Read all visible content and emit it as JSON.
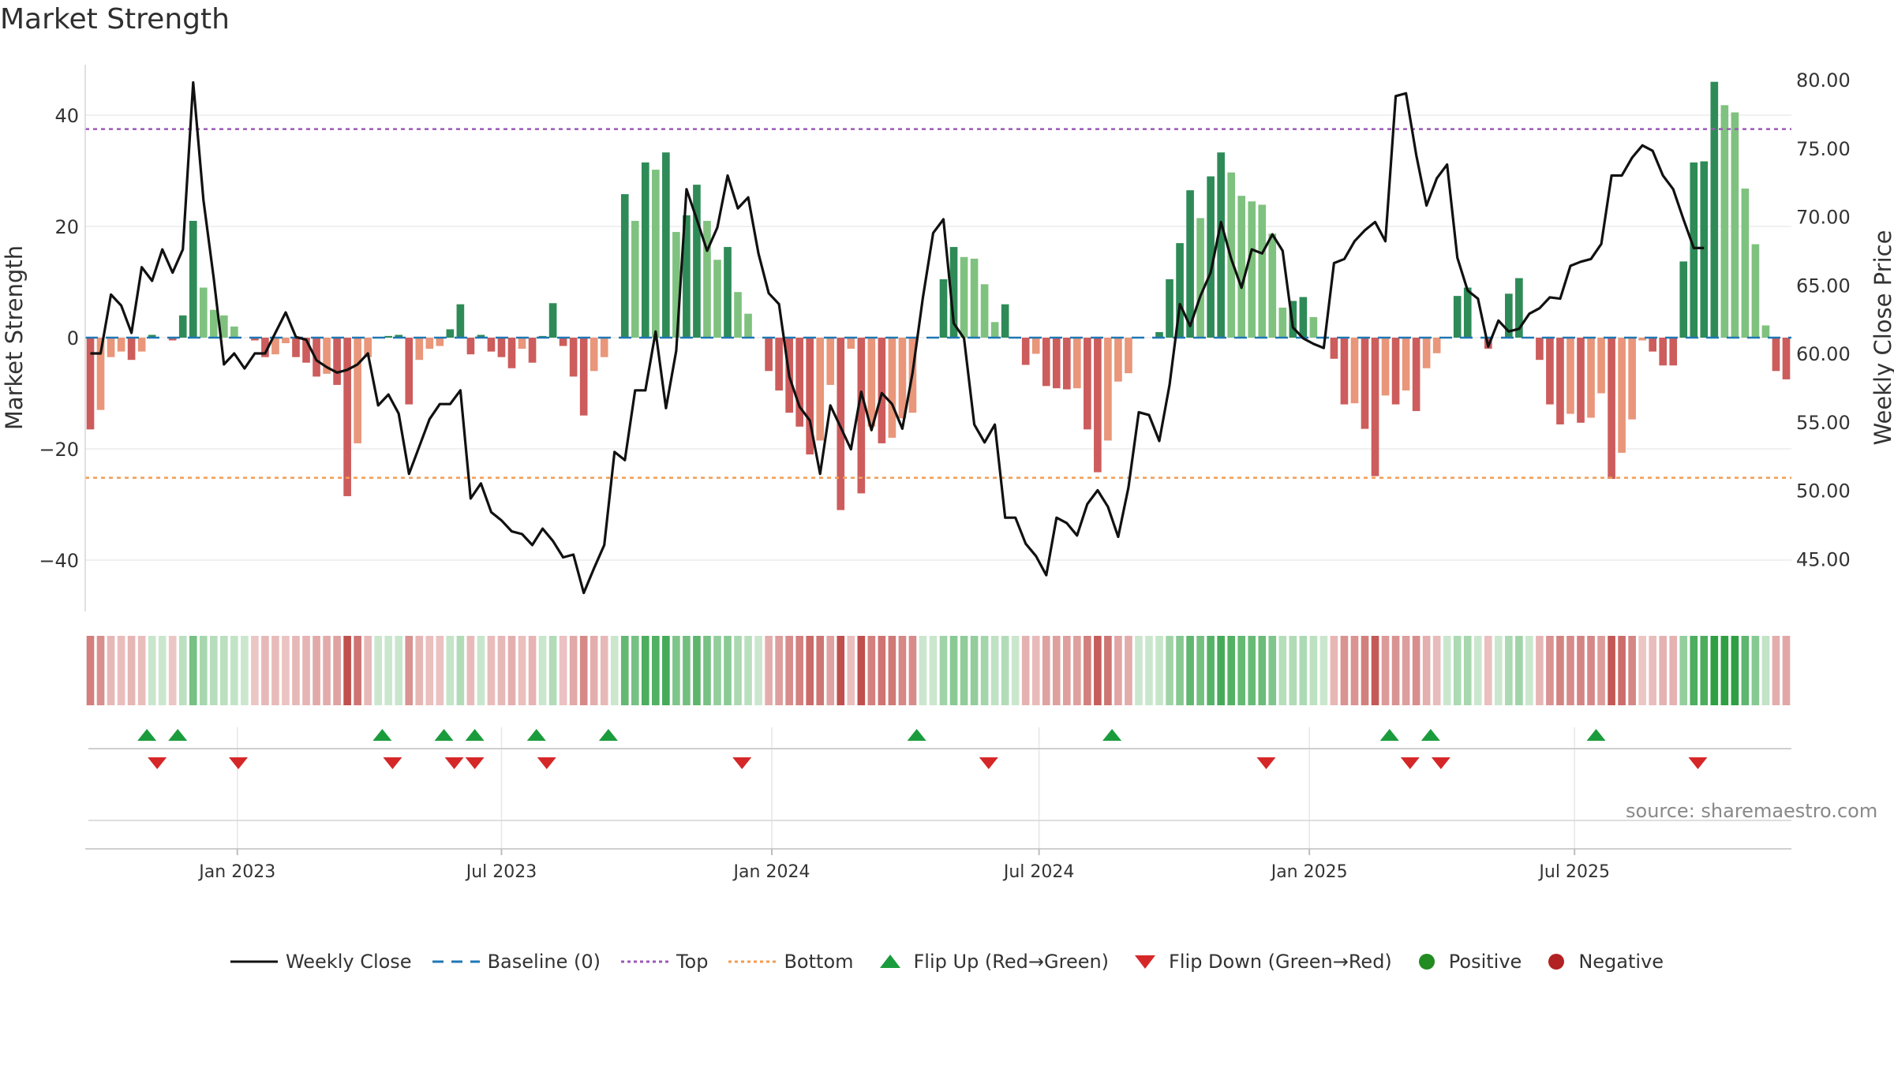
{
  "title": "Market Strength",
  "source": "source: sharemaestro.com",
  "colors": {
    "pos_dark": "#2e8b57",
    "pos_light": "#7fc27f",
    "neg_dark": "#cd5c5c",
    "neg_light": "#e9967a",
    "close": "#111111",
    "baseline": "#1f77b4",
    "top": "#9b59b6",
    "bottom": "#f39c50",
    "flip_up": "#1a9c3c",
    "flip_down": "#d62728",
    "positive": "#228b22",
    "negative": "#b22222"
  },
  "legend": {
    "close": "Weekly Close",
    "baseline": "Baseline (0)",
    "top": "Top",
    "bottom": "Bottom",
    "flip_up": "Flip Up (Red→Green)",
    "flip_down": "Flip Down (Green→Red)",
    "positive": "Positive",
    "negative": "Negative"
  },
  "chart_data": {
    "type": "bar",
    "title": "Market Strength",
    "ylabel_left": "Market Strength",
    "ylabel_right": "Weekly Close Price",
    "ylim_left": [
      -49,
      50
    ],
    "ylim_right": [
      42.0,
      82.0
    ],
    "yticks_left": [
      40,
      20,
      0,
      -20,
      -40
    ],
    "ytick_labels_left": [
      "40",
      "20",
      "0",
      "−20",
      "−40"
    ],
    "yticks_right": [
      80,
      75,
      70,
      65,
      60,
      55,
      50,
      45
    ],
    "ytick_labels_right": [
      "80.00",
      "75.00",
      "70.00",
      "65.00",
      "60.00",
      "55.00",
      "50.00",
      "45.00"
    ],
    "top_level": 37.5,
    "bottom_level": -25.2,
    "x_ticks": [
      {
        "label": "Jan 2023",
        "week": 14.3
      },
      {
        "label": "Jul 2023",
        "week": 40.0
      },
      {
        "label": "Jan 2024",
        "week": 66.3
      },
      {
        "label": "Jul 2024",
        "week": 92.3
      },
      {
        "label": "Jan 2025",
        "week": 118.6
      },
      {
        "label": "Jul 2025",
        "week": 144.4
      }
    ],
    "strength": [
      -16.5,
      -13,
      -3.5,
      -2.5,
      -4,
      -2.5,
      0.5,
      0,
      -0.5,
      4,
      21,
      9,
      5,
      4,
      2,
      0,
      -0.5,
      -3.5,
      -3,
      -1,
      -3.5,
      -4.5,
      -7,
      -6.5,
      -8.5,
      -28.5,
      -19,
      -3.5,
      0,
      0.3,
      0.5,
      -12,
      -4,
      -2,
      -1.5,
      1.5,
      6,
      -3,
      0.5,
      -2.5,
      -3.5,
      -5.5,
      -2,
      -4.5,
      0.3,
      6.2,
      -1.5,
      -7,
      -14,
      -6,
      -3.5,
      0,
      25.8,
      21,
      31.5,
      30.2,
      33.3,
      19,
      22,
      27.5,
      21,
      14,
      16.3,
      8.2,
      4.3,
      0,
      -6,
      -9.5,
      -13.5,
      -16,
      -21,
      -18.5,
      -8.5,
      -31,
      -2,
      -28,
      -16,
      -19,
      -18,
      -14.5,
      -13.5,
      0,
      0,
      10.5,
      16.3,
      14.5,
      14.2,
      9.6,
      2.8,
      6,
      0,
      -4.9,
      -2.9,
      -8.7,
      -9.1,
      -9.3,
      -9.1,
      -16.5,
      -24.2,
      -18.5,
      -7.9,
      -6.4,
      0,
      0,
      1,
      10.5,
      17,
      26.5,
      21.5,
      29,
      33.3,
      29.7,
      25.5,
      24.5,
      23.9,
      18.7,
      5.4,
      6.6,
      7.3,
      3.7,
      0,
      -3.8,
      -12,
      -11.8,
      -16.4,
      -24.9,
      -10.4,
      -12,
      -9.5,
      -13.2,
      -5.5,
      -2.8,
      0,
      7.5,
      9,
      0,
      -2,
      0,
      7.9,
      10.7,
      0,
      -4,
      -12,
      -15.6,
      -13.7,
      -15.3,
      -14.4,
      -10,
      -25.4,
      -20.7,
      -14.7,
      -0.5,
      -2.5,
      -5,
      -5,
      13.7,
      31.5,
      31.7,
      46,
      41.8,
      40.5,
      26.8,
      16.8,
      2.2,
      -6,
      -7.5
    ],
    "close": [
      60.0,
      60.0,
      64.3,
      63.5,
      61.5,
      66.3,
      65.3,
      67.6,
      65.9,
      67.6,
      79.8,
      71.2,
      65.5,
      59.2,
      60.0,
      58.9,
      60.0,
      60.0,
      61.5,
      63.0,
      61.2,
      61.0,
      59.5,
      59.0,
      58.6,
      58.8,
      59.2,
      60.0,
      56.2,
      57.0,
      55.6,
      51.2,
      53.2,
      55.2,
      56.3,
      56.3,
      57.3,
      49.4,
      50.5,
      48.4,
      47.8,
      47.0,
      46.8,
      46.0,
      47.2,
      46.3,
      45.1,
      45.3,
      42.5,
      44.3,
      46.0,
      52.8,
      52.2,
      57.3,
      57.3,
      61.6,
      56.0,
      60.2,
      72.0,
      69.8,
      67.5,
      69.2,
      73.0,
      70.6,
      71.4,
      67.3,
      64.4,
      63.6,
      58.3,
      56.1,
      55.1,
      51.2,
      56.2,
      54.6,
      53.0,
      57.2,
      54.4,
      57.1,
      56.3,
      54.5,
      58.6,
      64.1,
      68.8,
      69.8,
      62.2,
      61.1,
      54.8,
      53.5,
      54.8,
      48.0,
      48.0,
      46.1,
      45.2,
      43.8,
      48.0,
      47.6,
      46.7,
      49.0,
      50.0,
      48.8,
      46.6,
      50.2,
      55.7,
      55.5,
      53.6,
      57.7,
      63.6,
      62.0,
      64.2,
      65.9,
      69.6,
      66.9,
      64.8,
      67.6,
      67.3,
      68.7,
      67.5,
      61.9,
      61.1,
      60.7,
      60.4,
      66.6,
      66.9,
      68.2,
      69.0,
      69.6,
      68.2,
      78.8,
      79.0,
      74.5,
      70.8,
      72.8,
      73.8,
      67.0,
      64.6,
      64.0,
      60.5,
      62.4,
      61.6,
      61.8,
      62.9,
      63.3,
      64.1,
      64.0,
      66.4,
      66.7,
      66.9,
      68.0,
      73.0,
      73.0,
      74.3,
      75.2,
      74.8,
      73.0,
      72.0,
      69.8,
      67.7,
      67.7
    ],
    "flip_up_weeks": [
      5.5,
      8.5,
      28.4,
      34.4,
      37.4,
      43.4,
      50.4,
      80.4,
      99.4,
      126.4,
      130.4,
      146.5
    ],
    "flip_down_weeks": [
      6.5,
      14.4,
      29.4,
      35.4,
      37.4,
      44.4,
      63.4,
      87.4,
      114.4,
      128.4,
      131.4,
      156.4
    ]
  }
}
